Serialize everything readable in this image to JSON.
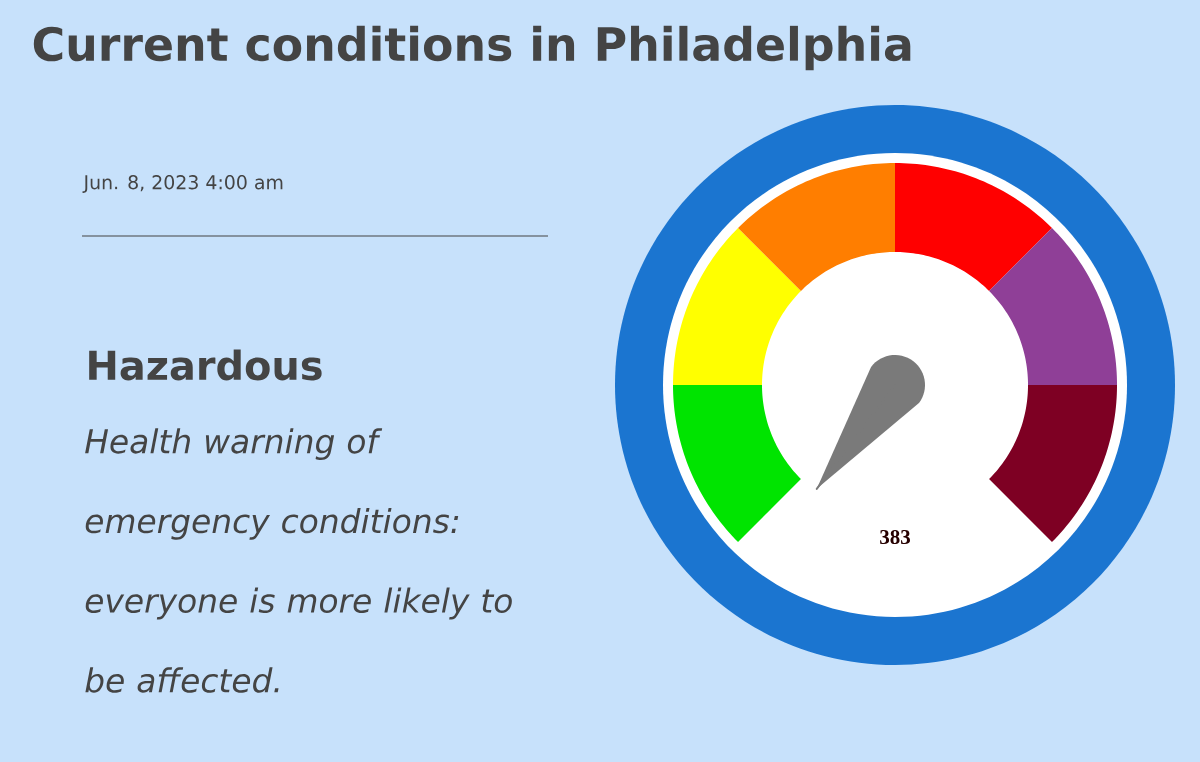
{
  "chart_data": {
    "type": "donut",
    "title": "Current conditions in Philadelphia",
    "subtitle": "Jun. 8, 2023 4:00 am",
    "categories": [
      null,
      null,
      null,
      null,
      null,
      null
    ],
    "values": [
      16.66,
      16.67,
      16.67,
      16.67,
      16.67,
      16.66
    ],
    "colors": [
      "#00e400",
      "#ffff00",
      "#ff7e00",
      "#ff0000",
      "#8f3f97",
      "#7e0023"
    ],
    "annotations": [
      "Hazardous",
      "Health warning of emergency conditions: everyone is more likely to be affected.",
      "383"
    ]
  }
}
